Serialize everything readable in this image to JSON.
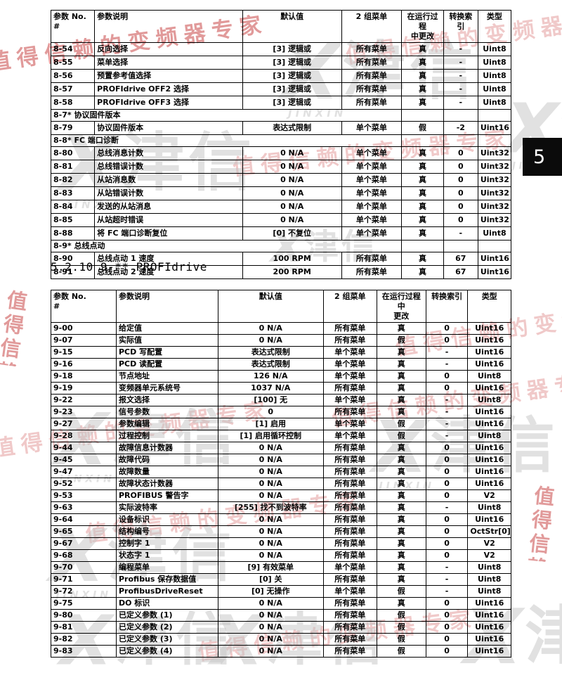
{
  "side_tab": {
    "label": "5"
  },
  "section_heading": "5.2.10 9-** PROFIdrive",
  "watermark": {
    "slogan": "值得信赖的变频器专家",
    "logo_x": "X",
    "logo_latin": "JINXIN",
    "logo_cn": "津信"
  },
  "table1": {
    "headers": [
      "参数 No.\n#",
      "参数说明",
      "默认值",
      "2 组菜单",
      "在运行过程\n中更改",
      "转换索引",
      "类型"
    ],
    "rows": [
      [
        "8-54",
        "反向选择",
        "[3] 逻辑或",
        "所有菜单",
        "真",
        "-",
        "Uint8"
      ],
      [
        "8-55",
        "菜单选择",
        "[3] 逻辑或",
        "所有菜单",
        "真",
        "-",
        "Uint8"
      ],
      [
        "8-56",
        "预置参考值选择",
        "[3] 逻辑或",
        "所有菜单",
        "真",
        "-",
        "Uint8"
      ],
      [
        "8-57",
        "PROFIdrive OFF2 选择",
        "[3] 逻辑或",
        "所有菜单",
        "真",
        "-",
        "Uint8"
      ],
      [
        "8-58",
        "PROFIdrive OFF3 选择",
        "[3] 逻辑或",
        "所有菜单",
        "真",
        "-",
        "Uint8"
      ],
      {
        "section": "8-7* 协议固件版本"
      },
      [
        "8-79",
        "协议固件版本",
        "表达式限制",
        "单个菜单",
        "假",
        "-2",
        "Uint16"
      ],
      {
        "section": "8-8* FC 端口诊断"
      },
      [
        "8-80",
        "总线消息计数",
        "0 N/A",
        "单个菜单",
        "真",
        "0",
        "Uint32"
      ],
      [
        "8-81",
        "总线错误计数",
        "0 N/A",
        "单个菜单",
        "真",
        "0",
        "Uint32"
      ],
      [
        "8-82",
        "从站消息数",
        "0 N/A",
        "单个菜单",
        "真",
        "0",
        "Uint32"
      ],
      [
        "8-83",
        "从站错误计数",
        "0 N/A",
        "单个菜单",
        "真",
        "0",
        "Uint32"
      ],
      [
        "8-84",
        "发送的从站消息",
        "0 N/A",
        "单个菜单",
        "真",
        "0",
        "Uint32"
      ],
      [
        "8-85",
        "从站超时错误",
        "0 N/A",
        "单个菜单",
        "真",
        "0",
        "Uint32"
      ],
      [
        "8-88",
        "将 FC 端口诊断复位",
        "[0] 不复位",
        "单个菜单",
        "真",
        "-",
        "Uint8"
      ],
      {
        "section": "8-9* 总线点动"
      },
      [
        "8-90",
        "总线点动 1 速度",
        "100 RPM",
        "所有菜单",
        "真",
        "67",
        "Uint16"
      ],
      [
        "8-91",
        "总线点动 2 速度",
        "200 RPM",
        "所有菜单",
        "真",
        "67",
        "Uint16"
      ]
    ]
  },
  "table2": {
    "headers": [
      "参数 No.\n#",
      "参数说明",
      "默认值",
      "2 组菜单",
      "在运行过程中\n更改",
      "转换索引",
      "类型"
    ],
    "rows": [
      [
        "9-00",
        "给定值",
        "0 N/A",
        "所有菜单",
        "真",
        "0",
        "Uint16"
      ],
      [
        "9-07",
        "实际值",
        "0 N/A",
        "所有菜单",
        "假",
        "0",
        "Uint16"
      ],
      [
        "9-15",
        "PCD 写配置",
        "表达式限制",
        "单个菜单",
        "真",
        "-",
        "Uint16"
      ],
      [
        "9-16",
        "PCD 读配置",
        "表达式限制",
        "单个菜单",
        "真",
        "-",
        "Uint16"
      ],
      [
        "9-18",
        "节点地址",
        "126 N/A",
        "单个菜单",
        "真",
        "0",
        "Uint8"
      ],
      [
        "9-19",
        "变频器单元系统号",
        "1037 N/A",
        "所有菜单",
        "真",
        "0",
        "Uint16"
      ],
      [
        "9-22",
        "报文选择",
        "[100] 无",
        "单个菜单",
        "真",
        "-",
        "Uint8"
      ],
      [
        "9-23",
        "信号参数",
        "0",
        "所有菜单",
        "真",
        "-",
        "Uint16"
      ],
      [
        "9-27",
        "参数编辑",
        "[1] 启用",
        "单个菜单",
        "假",
        "-",
        "Uint16"
      ],
      [
        "9-28",
        "过程控制",
        "[1] 启用循环控制",
        "单个菜单",
        "假",
        "-",
        "Uint8"
      ],
      [
        "9-44",
        "故障信息计数器",
        "0 N/A",
        "所有菜单",
        "真",
        "0",
        "Uint16"
      ],
      [
        "9-45",
        "故障代码",
        "0 N/A",
        "所有菜单",
        "真",
        "0",
        "Uint16"
      ],
      [
        "9-47",
        "故障数量",
        "0 N/A",
        "所有菜单",
        "真",
        "0",
        "Uint16"
      ],
      [
        "9-52",
        "故障状态计数器",
        "0 N/A",
        "所有菜单",
        "真",
        "0",
        "Uint16"
      ],
      [
        "9-53",
        "PROFIBUS 警告字",
        "0 N/A",
        "所有菜单",
        "真",
        "0",
        "V2"
      ],
      [
        "9-63",
        "实际波特率",
        "[255] 找不到波特率",
        "所有菜单",
        "真",
        "-",
        "Uint8"
      ],
      [
        "9-64",
        "设备标识",
        "0 N/A",
        "所有菜单",
        "真",
        "0",
        "Uint16"
      ],
      [
        "9-65",
        "结构编号",
        "0 N/A",
        "所有菜单",
        "真",
        "0",
        "OctStr[0]"
      ],
      [
        "9-67",
        "控制字 1",
        "0 N/A",
        "所有菜单",
        "真",
        "0",
        "V2"
      ],
      [
        "9-68",
        "状态字 1",
        "0 N/A",
        "所有菜单",
        "真",
        "0",
        "V2"
      ],
      [
        "9-70",
        "编程菜单",
        "[9] 有效菜单",
        "单个菜单",
        "真",
        "-",
        "Uint8"
      ],
      [
        "9-71",
        "Profibus 保存数据值",
        "[0] 关",
        "所有菜单",
        "真",
        "-",
        "Uint8"
      ],
      [
        "9-72",
        "ProfibusDriveReset",
        "[0] 无操作",
        "单个菜单",
        "假",
        "-",
        "Uint8"
      ],
      [
        "9-75",
        "DO 标识",
        "0 N/A",
        "所有菜单",
        "真",
        "0",
        "Uint16"
      ],
      [
        "9-80",
        "已定义参数 (1)",
        "0 N/A",
        "所有菜单",
        "假",
        "0",
        "Uint16"
      ],
      [
        "9-81",
        "已定义参数 (2)",
        "0 N/A",
        "所有菜单",
        "假",
        "0",
        "Uint16"
      ],
      [
        "9-82",
        "已定义参数 (3)",
        "0 N/A",
        "所有菜单",
        "假",
        "0",
        "Uint16"
      ],
      [
        "9-83",
        "已定义参数 (4)",
        "0 N/A",
        "所有菜单",
        "假",
        "0",
        "Uint16"
      ]
    ]
  }
}
